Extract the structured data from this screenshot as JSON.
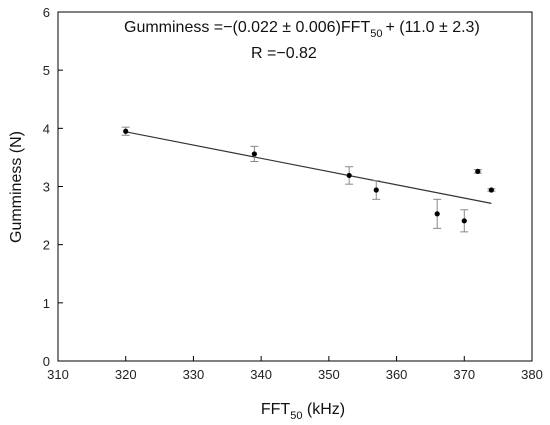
{
  "chart_data": {
    "type": "scatter",
    "xlabel": {
      "main": "FFT",
      "sub": "50",
      "tail": " (kHz)"
    },
    "ylabel": "Gumminess (N)",
    "xlim": [
      310,
      380
    ],
    "ylim": [
      0,
      6
    ],
    "xticks": [
      310,
      320,
      330,
      340,
      350,
      360,
      370,
      380
    ],
    "yticks": [
      0,
      1,
      2,
      3,
      4,
      5,
      6
    ],
    "grid": false,
    "points": [
      {
        "x": 320,
        "y": 3.95,
        "err": 0.07
      },
      {
        "x": 339,
        "y": 3.56,
        "err": 0.13
      },
      {
        "x": 353,
        "y": 3.19,
        "err": 0.15
      },
      {
        "x": 357,
        "y": 2.94,
        "err": 0.16
      },
      {
        "x": 366,
        "y": 2.53,
        "err": 0.25
      },
      {
        "x": 370,
        "y": 2.41,
        "err": 0.19
      },
      {
        "x": 372,
        "y": 3.26,
        "err": 0.03
      },
      {
        "x": 374,
        "y": 2.94,
        "err": 0.02
      }
    ],
    "fit_line": {
      "x": [
        320,
        374
      ],
      "y": [
        3.94,
        2.71
      ]
    },
    "annotations": {
      "equation_prefix": "Gumminess =−(0.022 ± 0.006)FFT",
      "equation_sub": "50",
      "equation_suffix": "+ (11.0 ± 2.3)",
      "r_value": "R =−0.82"
    }
  }
}
